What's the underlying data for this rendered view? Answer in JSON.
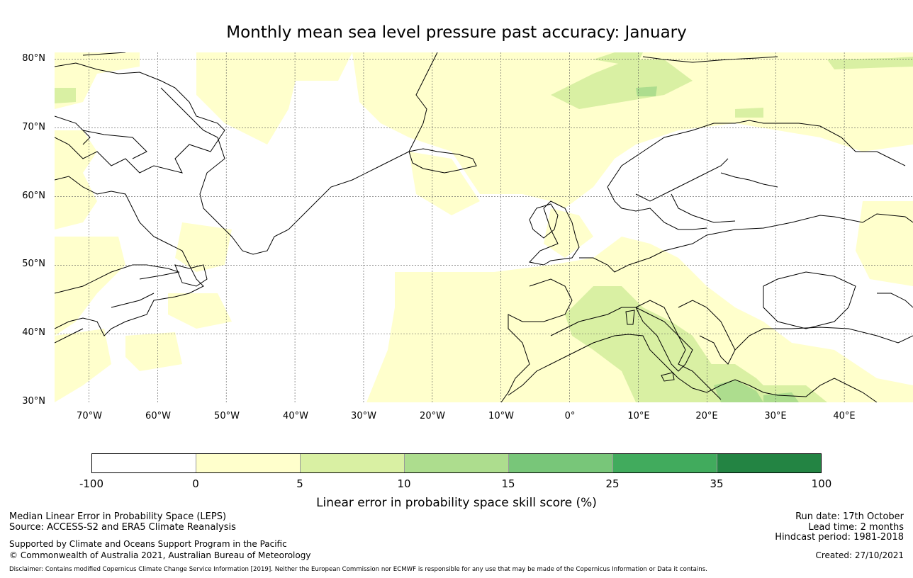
{
  "title": "Monthly mean sea level pressure past accuracy: January",
  "map": {
    "lat_labels": [
      "80°N",
      "70°N",
      "60°N",
      "50°N",
      "40°N",
      "30°N"
    ],
    "lon_labels": [
      "70°W",
      "60°W",
      "50°W",
      "40°W",
      "30°W",
      "20°W",
      "10°W",
      "0°",
      "10°E",
      "20°E",
      "30°E",
      "40°E"
    ],
    "extent": {
      "lon_min": -75,
      "lon_max": 50,
      "lat_min": 30,
      "lat_max": 81
    }
  },
  "colorbar": {
    "ticks": [
      "-100",
      "0",
      "5",
      "10",
      "15",
      "25",
      "35",
      "100"
    ],
    "colors": [
      "#ffffff",
      "#ffffcc",
      "#d9f0a3",
      "#addd8e",
      "#78c679",
      "#41ab5d",
      "#238443"
    ],
    "label": "Linear error in probability space skill score (%)"
  },
  "footer": {
    "left_line1": "Median Linear Error in Probability Space (LEPS)",
    "left_line2": "Source: ACCESS-S2 and ERA5 Climate Reanalysis",
    "left_line3": "Supported by Climate and Oceans Support Program in the Pacific",
    "left_line4": "© Commonwealth of Australia 2021, Australian Bureau of Meteorology",
    "right_line1": "Run date: 17th October",
    "right_line2": "Lead time: 2 months",
    "right_line3": "Hindcast period: 1981-2018",
    "right_line4": "Created: 27/10/2021",
    "disclaimer": "Disclaimer: Contains modified Copernicus Climate Change Service Information [2019]. Neither the European Commission nor ECMWF is responsible for any use that may be made of the Copernicus Information or Data it contains."
  }
}
